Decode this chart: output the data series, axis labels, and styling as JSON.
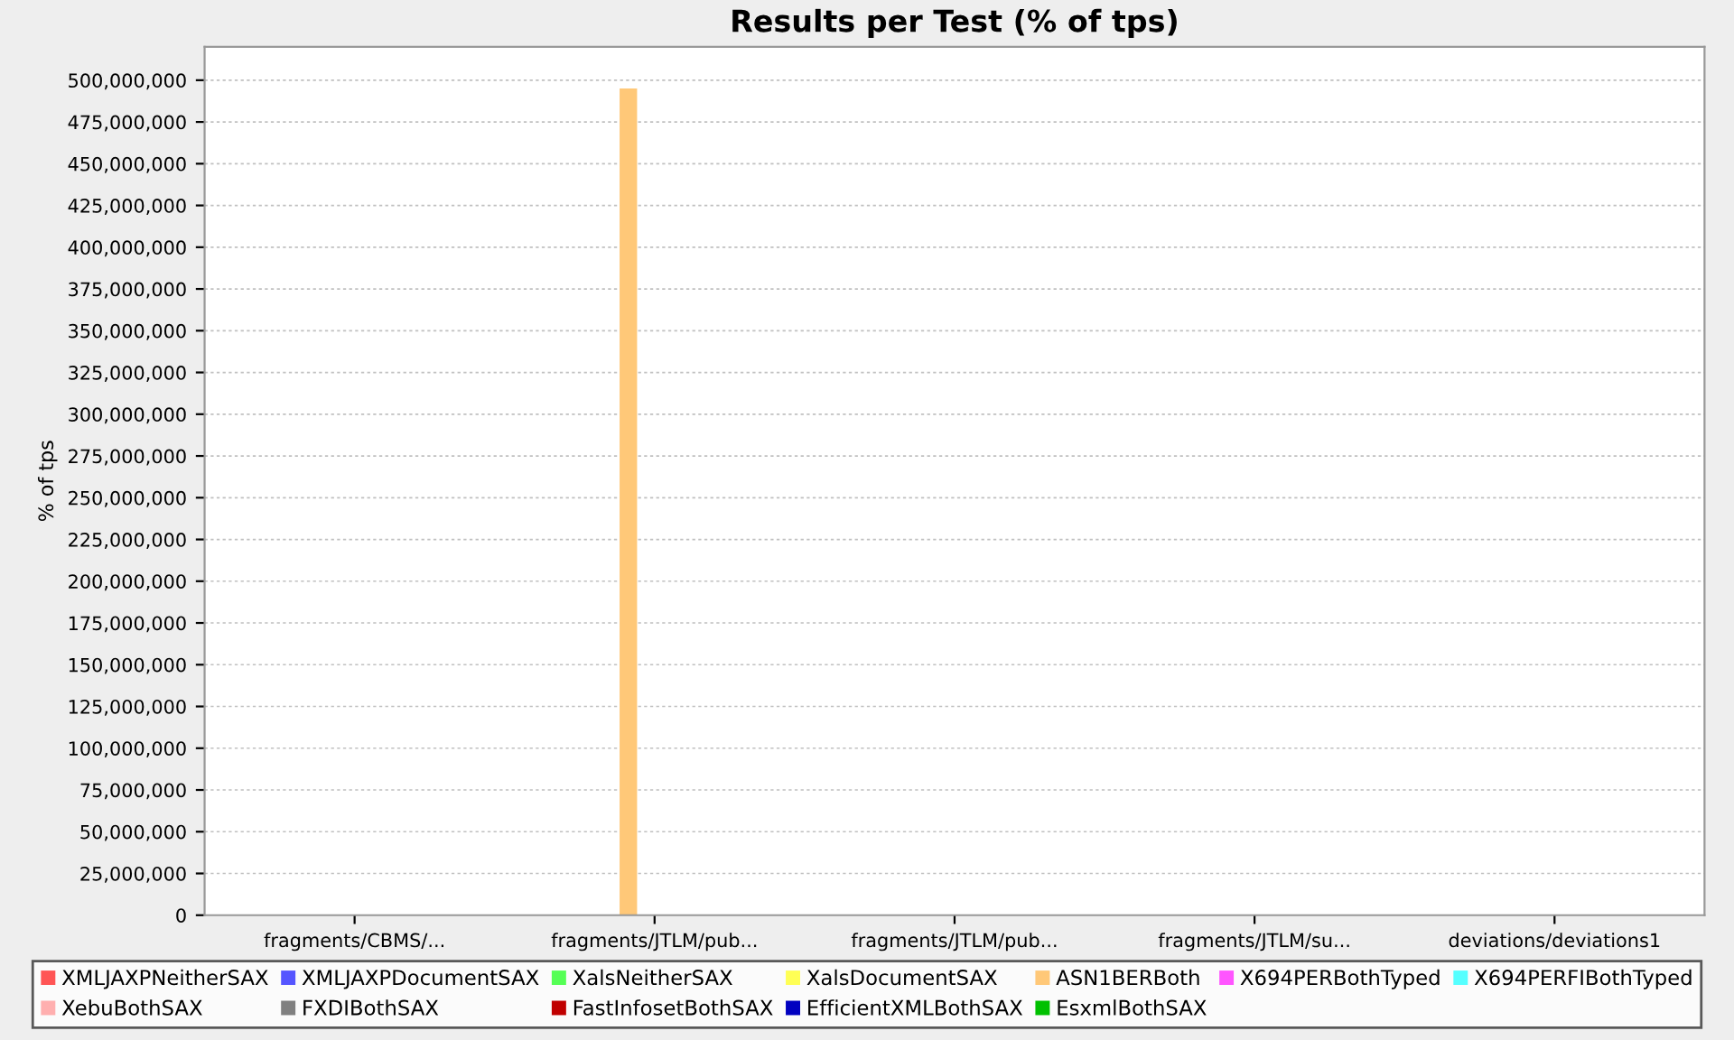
{
  "chart_data": {
    "type": "bar",
    "title": "Results per Test (% of tps)",
    "ylabel": "% of tps",
    "categories": [
      "fragments/CBMS/...",
      "fragments/JTLM/pub...",
      "fragments/JTLM/pub...",
      "fragments/JTLM/su...",
      "deviations/deviations1"
    ],
    "series": [
      {
        "name": "XMLJAXPNeitherSAX",
        "color": "#ff5555",
        "values": [
          0,
          0,
          0,
          0,
          0
        ]
      },
      {
        "name": "XMLJAXPDocumentSAX",
        "color": "#5555ff",
        "values": [
          0,
          0,
          0,
          0,
          0
        ]
      },
      {
        "name": "XalsNeitherSAX",
        "color": "#55ff55",
        "values": [
          0,
          0,
          0,
          0,
          0
        ]
      },
      {
        "name": "XalsDocumentSAX",
        "color": "#ffff55",
        "values": [
          0,
          0,
          0,
          0,
          0
        ]
      },
      {
        "name": "ASN1BERBoth",
        "color": "#ffc878",
        "values": [
          0,
          495000000,
          0,
          0,
          0
        ]
      },
      {
        "name": "X694PERBothTyped",
        "color": "#ff55ff",
        "values": [
          0,
          0,
          0,
          0,
          0
        ]
      },
      {
        "name": "X694PERFIBothTyped",
        "color": "#55ffff",
        "values": [
          0,
          0,
          0,
          0,
          0
        ]
      },
      {
        "name": "XebuBothSAX",
        "color": "#ffafaf",
        "values": [
          0,
          0,
          0,
          0,
          0
        ]
      },
      {
        "name": "FXDIBothSAX",
        "color": "#808080",
        "values": [
          0,
          0,
          0,
          0,
          0
        ]
      },
      {
        "name": "FastInfosetBothSAX",
        "color": "#c00000",
        "values": [
          0,
          0,
          0,
          0,
          0
        ]
      },
      {
        "name": "EfficientXMLBothSAX",
        "color": "#0000c0",
        "values": [
          0,
          0,
          0,
          0,
          0
        ]
      },
      {
        "name": "EsxmlBothSAX",
        "color": "#00c000",
        "values": [
          0,
          0,
          0,
          0,
          0
        ]
      }
    ],
    "ylim": [
      0,
      520000000
    ],
    "yticks": [
      {
        "value": 0,
        "label": "0"
      },
      {
        "value": 25000000,
        "label": "25,000,000"
      },
      {
        "value": 50000000,
        "label": "50,000,000"
      },
      {
        "value": 75000000,
        "label": "75,000,000"
      },
      {
        "value": 100000000,
        "label": "100,000,000"
      },
      {
        "value": 125000000,
        "label": "125,000,000"
      },
      {
        "value": 150000000,
        "label": "150,000,000"
      },
      {
        "value": 175000000,
        "label": "175,000,000"
      },
      {
        "value": 200000000,
        "label": "200,000,000"
      },
      {
        "value": 225000000,
        "label": "225,000,000"
      },
      {
        "value": 250000000,
        "label": "250,000,000"
      },
      {
        "value": 275000000,
        "label": "275,000,000"
      },
      {
        "value": 300000000,
        "label": "300,000,000"
      },
      {
        "value": 325000000,
        "label": "325,000,000"
      },
      {
        "value": 350000000,
        "label": "350,000,000"
      },
      {
        "value": 375000000,
        "label": "375,000,000"
      },
      {
        "value": 400000000,
        "label": "400,000,000"
      },
      {
        "value": 425000000,
        "label": "425,000,000"
      },
      {
        "value": 450000000,
        "label": "450,000,000"
      },
      {
        "value": 475000000,
        "label": "475,000,000"
      },
      {
        "value": 500000000,
        "label": "500,000,000"
      }
    ],
    "grid": "y",
    "legend": "bottom"
  }
}
